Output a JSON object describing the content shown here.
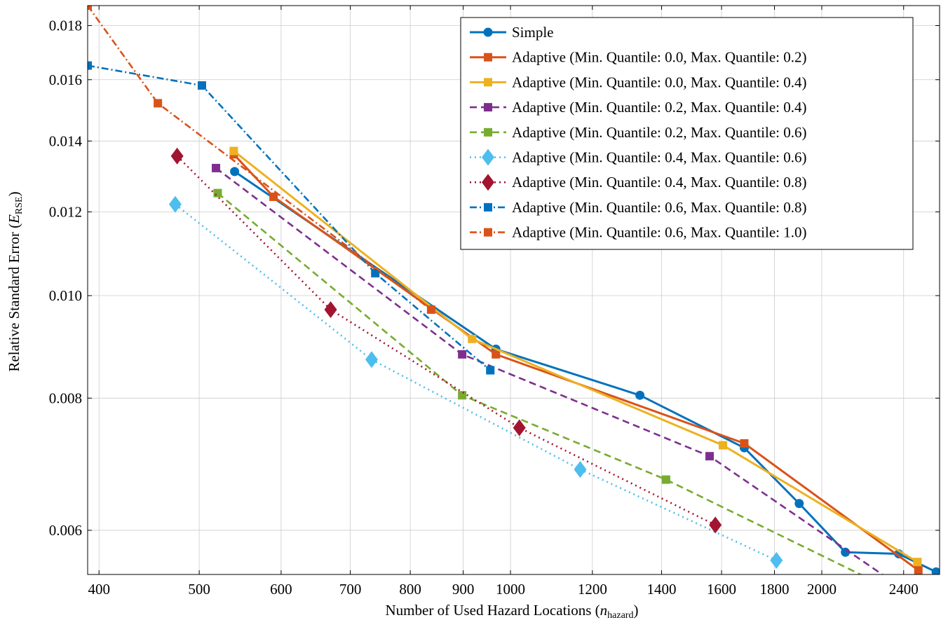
{
  "chart_data": {
    "type": "line",
    "xscale": "log",
    "yscale": "log",
    "xlim": [
      390,
      2600
    ],
    "ylim": [
      0.00545,
      0.0188
    ],
    "grid": true,
    "legend_position": "top-right",
    "xlabel": "Number of Used Hazard Locations (",
    "xlabel_var": "n",
    "xlabel_sub": "hazard",
    "xlabel_close": ")",
    "ylabel": "Relative Standard Error (",
    "ylabel_var": "E",
    "ylabel_sub": "RSE",
    "ylabel_close": ")",
    "x_ticks": [
      400,
      500,
      600,
      700,
      800,
      900,
      1000,
      1200,
      1400,
      1600,
      1800,
      2000,
      2400
    ],
    "x_tick_labels": [
      "400",
      "500",
      "600",
      "700",
      "800",
      "900",
      "1000",
      "1200",
      "1400",
      "1600",
      "1800",
      "2000",
      "2400"
    ],
    "y_ticks": [
      0.006,
      0.008,
      0.01,
      0.012,
      0.014,
      0.016,
      0.018
    ],
    "y_tick_labels": [
      "0.006",
      "0.008",
      "0.010",
      "0.012",
      "0.014",
      "0.016",
      "0.018"
    ],
    "series": [
      {
        "name": "Simple",
        "color": "#0072bd",
        "dash": "solid",
        "marker": "circle",
        "x": [
          541,
          968,
          1334,
          1683,
          1902,
          2108,
          2374,
          2580
        ],
        "y": [
          0.0131,
          0.0089,
          0.00805,
          0.00718,
          0.00636,
          0.00572,
          0.0057,
          0.00548
        ]
      },
      {
        "name": "Adaptive (Min. Quantile: 0.0, Max. Quantile: 0.2)",
        "color": "#d95319",
        "dash": "solid",
        "marker": "square",
        "x": [
          540,
          590,
          968,
          1683,
          2480
        ],
        "y": [
          0.0136,
          0.0124,
          0.0088,
          0.00725,
          0.0055
        ]
      },
      {
        "name": "Adaptive (Min. Quantile: 0.0, Max. Quantile: 0.4)",
        "color": "#edb120",
        "dash": "solid",
        "marker": "square",
        "x": [
          540,
          918,
          1605,
          2475
        ],
        "y": [
          0.0137,
          0.0091,
          0.00722,
          0.0056
        ]
      },
      {
        "name": "Adaptive (Min. Quantile: 0.2, Max. Quantile: 0.4)",
        "color": "#7e2f8e",
        "dash": "dashed",
        "marker": "square",
        "x": [
          519,
          898,
          1558,
          2320
        ],
        "y": [
          0.0132,
          0.0088,
          0.00705,
          0.0054
        ]
      },
      {
        "name": "Adaptive (Min. Quantile: 0.2, Max. Quantile: 0.6)",
        "color": "#77ac30",
        "dash": "dashed",
        "marker": "square",
        "x": [
          521,
          898,
          1414,
          2240
        ],
        "y": [
          0.0125,
          0.00805,
          0.0067,
          0.00538
        ]
      },
      {
        "name": "Adaptive (Min. Quantile: 0.4, Max. Quantile: 0.6)",
        "color": "#4dbeee",
        "dash": "dotted",
        "marker": "diamond",
        "x": [
          474,
          734,
          1168,
          1808
        ],
        "y": [
          0.0122,
          0.0087,
          0.00685,
          0.00562
        ]
      },
      {
        "name": "Adaptive (Min. Quantile: 0.4, Max. Quantile: 0.8)",
        "color": "#a2142f",
        "dash": "dotted",
        "marker": "diamond",
        "x": [
          476,
          670,
          1020,
          1578
        ],
        "y": [
          0.01355,
          0.0097,
          0.0075,
          0.00607
        ]
      },
      {
        "name": "Adaptive (Min. Quantile: 0.6, Max. Quantile: 0.8)",
        "color": "#0072bd",
        "dash": "dashdot",
        "marker": "square",
        "x": [
          390,
          503,
          740,
          956
        ],
        "y": [
          0.0165,
          0.0158,
          0.0105,
          0.0085
        ]
      },
      {
        "name": "Adaptive (Min. Quantile: 0.6, Max. Quantile: 1.0)",
        "color": "#d95319",
        "dash": "dashdot",
        "marker": "square",
        "x": [
          390,
          456,
          838
        ],
        "y": [
          0.0188,
          0.0152,
          0.0097
        ]
      }
    ]
  }
}
